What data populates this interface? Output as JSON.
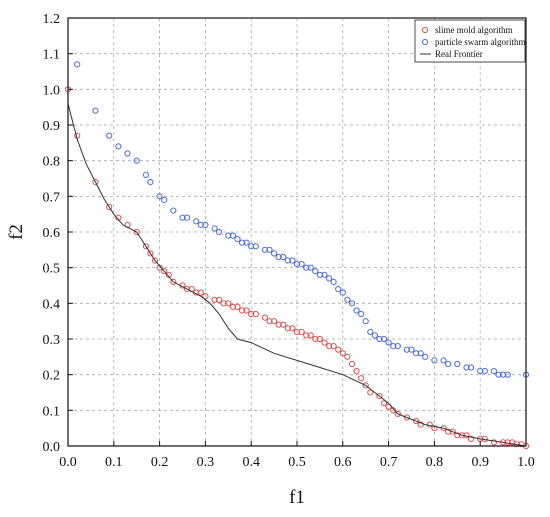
{
  "chart_data": {
    "type": "scatter",
    "xlabel": "f1",
    "ylabel": "f2",
    "xlim": [
      0,
      1.0
    ],
    "ylim": [
      0,
      1.2
    ],
    "grid": true,
    "legend_position": "top-right",
    "x_ticks": [
      "0.0",
      "0.1",
      "0.2",
      "0.3",
      "0.4",
      "0.5",
      "0.6",
      "0.7",
      "0.8",
      "0.9",
      "1.0"
    ],
    "y_ticks": [
      "0.0",
      "0.1",
      "0.2",
      "0.3",
      "0.4",
      "0.5",
      "0.6",
      "0.7",
      "0.8",
      "0.9",
      "1.0",
      "1.1",
      "1.2"
    ],
    "series": [
      {
        "name": "slime mold algorithm",
        "kind": "scatter",
        "marker": "open-circle",
        "color": "#d9534f",
        "points": [
          [
            0.0,
            1.0
          ],
          [
            0.02,
            0.87
          ],
          [
            0.06,
            0.74
          ],
          [
            0.09,
            0.67
          ],
          [
            0.11,
            0.64
          ],
          [
            0.13,
            0.62
          ],
          [
            0.15,
            0.6
          ],
          [
            0.17,
            0.56
          ],
          [
            0.18,
            0.54
          ],
          [
            0.19,
            0.52
          ],
          [
            0.2,
            0.5
          ],
          [
            0.21,
            0.49
          ],
          [
            0.22,
            0.48
          ],
          [
            0.23,
            0.46
          ],
          [
            0.25,
            0.45
          ],
          [
            0.26,
            0.44
          ],
          [
            0.27,
            0.44
          ],
          [
            0.28,
            0.43
          ],
          [
            0.29,
            0.43
          ],
          [
            0.3,
            0.42
          ],
          [
            0.32,
            0.41
          ],
          [
            0.33,
            0.41
          ],
          [
            0.34,
            0.4
          ],
          [
            0.35,
            0.4
          ],
          [
            0.36,
            0.39
          ],
          [
            0.37,
            0.39
          ],
          [
            0.38,
            0.38
          ],
          [
            0.39,
            0.38
          ],
          [
            0.4,
            0.37
          ],
          [
            0.41,
            0.37
          ],
          [
            0.43,
            0.36
          ],
          [
            0.44,
            0.35
          ],
          [
            0.45,
            0.35
          ],
          [
            0.46,
            0.34
          ],
          [
            0.47,
            0.34
          ],
          [
            0.48,
            0.33
          ],
          [
            0.49,
            0.33
          ],
          [
            0.5,
            0.32
          ],
          [
            0.51,
            0.32
          ],
          [
            0.52,
            0.31
          ],
          [
            0.53,
            0.31
          ],
          [
            0.54,
            0.3
          ],
          [
            0.55,
            0.3
          ],
          [
            0.56,
            0.29
          ],
          [
            0.57,
            0.28
          ],
          [
            0.58,
            0.28
          ],
          [
            0.59,
            0.27
          ],
          [
            0.6,
            0.26
          ],
          [
            0.61,
            0.25
          ],
          [
            0.62,
            0.23
          ],
          [
            0.63,
            0.21
          ],
          [
            0.64,
            0.19
          ],
          [
            0.65,
            0.17
          ],
          [
            0.66,
            0.15
          ],
          [
            0.68,
            0.14
          ],
          [
            0.69,
            0.12
          ],
          [
            0.7,
            0.11
          ],
          [
            0.71,
            0.1
          ],
          [
            0.72,
            0.09
          ],
          [
            0.74,
            0.08
          ],
          [
            0.76,
            0.07
          ],
          [
            0.77,
            0.06
          ],
          [
            0.79,
            0.06
          ],
          [
            0.8,
            0.05
          ],
          [
            0.82,
            0.05
          ],
          [
            0.83,
            0.04
          ],
          [
            0.84,
            0.04
          ],
          [
            0.85,
            0.03
          ],
          [
            0.86,
            0.03
          ],
          [
            0.87,
            0.03
          ],
          [
            0.88,
            0.02
          ],
          [
            0.9,
            0.02
          ],
          [
            0.91,
            0.02
          ],
          [
            0.93,
            0.01
          ],
          [
            0.95,
            0.01
          ],
          [
            0.96,
            0.01
          ],
          [
            0.97,
            0.01
          ],
          [
            0.98,
            0.005
          ],
          [
            0.99,
            0.005
          ],
          [
            1.0,
            0.0
          ]
        ]
      },
      {
        "name": "particle swarm algorithm",
        "kind": "scatter",
        "marker": "open-circle",
        "color": "#4a6fd6",
        "points": [
          [
            0.02,
            1.07
          ],
          [
            0.06,
            0.94
          ],
          [
            0.09,
            0.87
          ],
          [
            0.11,
            0.84
          ],
          [
            0.13,
            0.82
          ],
          [
            0.15,
            0.8
          ],
          [
            0.17,
            0.76
          ],
          [
            0.18,
            0.74
          ],
          [
            0.2,
            0.7
          ],
          [
            0.21,
            0.69
          ],
          [
            0.23,
            0.66
          ],
          [
            0.25,
            0.64
          ],
          [
            0.26,
            0.64
          ],
          [
            0.28,
            0.63
          ],
          [
            0.29,
            0.62
          ],
          [
            0.3,
            0.62
          ],
          [
            0.32,
            0.61
          ],
          [
            0.33,
            0.6
          ],
          [
            0.35,
            0.59
          ],
          [
            0.36,
            0.59
          ],
          [
            0.37,
            0.58
          ],
          [
            0.38,
            0.57
          ],
          [
            0.39,
            0.57
          ],
          [
            0.4,
            0.56
          ],
          [
            0.41,
            0.56
          ],
          [
            0.43,
            0.55
          ],
          [
            0.44,
            0.55
          ],
          [
            0.45,
            0.54
          ],
          [
            0.46,
            0.53
          ],
          [
            0.47,
            0.53
          ],
          [
            0.48,
            0.52
          ],
          [
            0.49,
            0.52
          ],
          [
            0.5,
            0.51
          ],
          [
            0.51,
            0.51
          ],
          [
            0.52,
            0.5
          ],
          [
            0.53,
            0.5
          ],
          [
            0.54,
            0.49
          ],
          [
            0.55,
            0.48
          ],
          [
            0.56,
            0.48
          ],
          [
            0.57,
            0.47
          ],
          [
            0.58,
            0.46
          ],
          [
            0.59,
            0.44
          ],
          [
            0.6,
            0.43
          ],
          [
            0.61,
            0.41
          ],
          [
            0.62,
            0.4
          ],
          [
            0.63,
            0.38
          ],
          [
            0.64,
            0.37
          ],
          [
            0.65,
            0.35
          ],
          [
            0.66,
            0.32
          ],
          [
            0.67,
            0.31
          ],
          [
            0.68,
            0.3
          ],
          [
            0.69,
            0.3
          ],
          [
            0.7,
            0.29
          ],
          [
            0.71,
            0.28
          ],
          [
            0.72,
            0.28
          ],
          [
            0.74,
            0.27
          ],
          [
            0.75,
            0.27
          ],
          [
            0.76,
            0.26
          ],
          [
            0.77,
            0.26
          ],
          [
            0.78,
            0.25
          ],
          [
            0.8,
            0.24
          ],
          [
            0.82,
            0.24
          ],
          [
            0.83,
            0.23
          ],
          [
            0.85,
            0.23
          ],
          [
            0.87,
            0.22
          ],
          [
            0.88,
            0.22
          ],
          [
            0.9,
            0.21
          ],
          [
            0.91,
            0.21
          ],
          [
            0.93,
            0.21
          ],
          [
            0.94,
            0.2
          ],
          [
            0.95,
            0.2
          ],
          [
            0.96,
            0.2
          ],
          [
            1.0,
            0.2
          ]
        ]
      },
      {
        "name": "Real Frontier",
        "kind": "line",
        "color": "#333333",
        "points": [
          [
            0.0,
            0.96
          ],
          [
            0.02,
            0.86
          ],
          [
            0.04,
            0.79
          ],
          [
            0.06,
            0.74
          ],
          [
            0.08,
            0.69
          ],
          [
            0.1,
            0.65
          ],
          [
            0.12,
            0.62
          ],
          [
            0.15,
            0.6
          ],
          [
            0.17,
            0.56
          ],
          [
            0.19,
            0.52
          ],
          [
            0.21,
            0.49
          ],
          [
            0.23,
            0.46
          ],
          [
            0.26,
            0.44
          ],
          [
            0.29,
            0.42
          ],
          [
            0.31,
            0.4
          ],
          [
            0.33,
            0.37
          ],
          [
            0.35,
            0.33
          ],
          [
            0.37,
            0.3
          ],
          [
            0.4,
            0.29
          ],
          [
            0.45,
            0.26
          ],
          [
            0.5,
            0.24
          ],
          [
            0.55,
            0.22
          ],
          [
            0.6,
            0.2
          ],
          [
            0.65,
            0.17
          ],
          [
            0.68,
            0.14
          ],
          [
            0.7,
            0.12
          ],
          [
            0.72,
            0.09
          ],
          [
            0.74,
            0.08
          ],
          [
            0.78,
            0.06
          ],
          [
            0.82,
            0.05
          ],
          [
            0.86,
            0.03
          ],
          [
            0.9,
            0.02
          ],
          [
            0.95,
            0.01
          ],
          [
            1.0,
            0.0
          ]
        ]
      }
    ]
  }
}
